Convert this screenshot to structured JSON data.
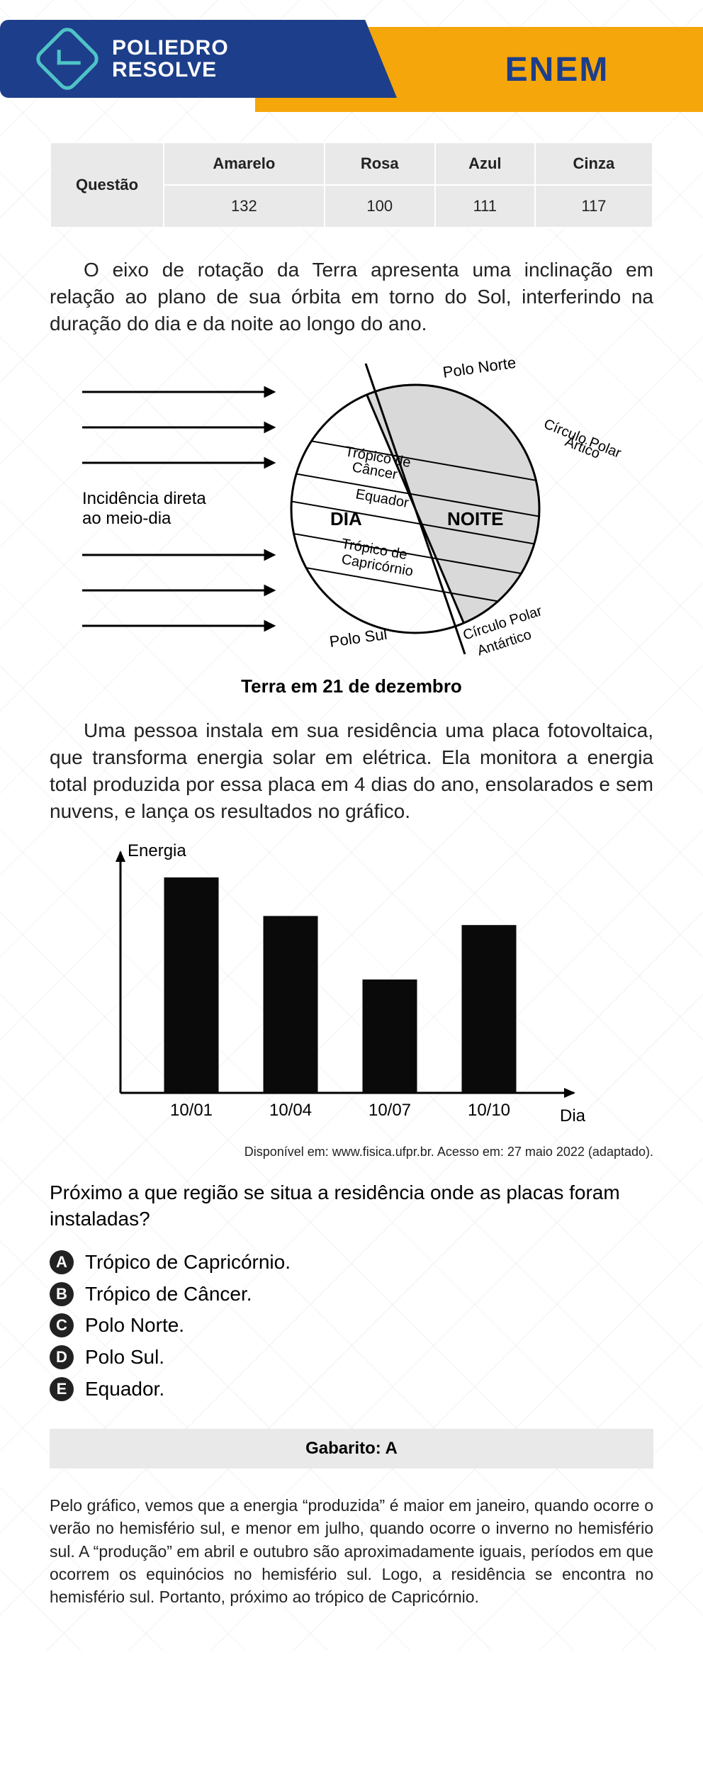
{
  "header": {
    "logo_line1": "POLIEDRO",
    "logo_line2": "RESOLVE",
    "exam": "ENEM"
  },
  "question_table": {
    "row_label": "Questão",
    "columns": [
      "Amarelo",
      "Rosa",
      "Azul",
      "Cinza"
    ],
    "values": [
      "132",
      "100",
      "111",
      "117"
    ],
    "header_bg": "#e9e9e9",
    "text_color": "#222222"
  },
  "intro_para": "O eixo de rotação da Terra apresenta uma inclinação em relação ao plano de sua órbita em torno do Sol, interferindo na duração do dia e da noite ao longo do ano.",
  "earth_diagram": {
    "caption": "Terra em 21 de dezembro",
    "labels": {
      "incidence": "Incidência direta\nao meio-dia",
      "polo_norte": "Polo Norte",
      "circulo_artico": "Círculo Polar Ártico",
      "tropico_cancer": "Trópico de Câncer",
      "equador": "Equador",
      "dia": "DIA",
      "noite": "NOITE",
      "tropico_capricornio": "Trópico de Capricórnio",
      "polo_sul": "Polo Sul",
      "circulo_antartico": "Círculo Polar Antártico"
    },
    "day_fill": "#ffffff",
    "night_fill": "#d9d9d9",
    "stroke": "#000000"
  },
  "second_para": "Uma pessoa instala em sua residência uma placa fotovoltaica, que transforma energia solar em elétrica. Ela monitora a energia total produzida por essa placa em 4 dias do ano, ensolarados e sem nuvens, e lança os resultados no gráfico.",
  "energy_chart": {
    "type": "bar",
    "y_label": "Energia",
    "x_label": "Dia",
    "categories": [
      "10/01",
      "10/04",
      "10/07",
      "10/10"
    ],
    "values": [
      95,
      78,
      50,
      74
    ],
    "ylim": [
      0,
      100
    ],
    "bar_color": "#0a0a0a",
    "axis_color": "#000000",
    "bar_width": 0.55,
    "label_fontsize": 24,
    "background_color": "#ffffff",
    "axis_width": 3
  },
  "source_text": "Disponível em: www.fisica.ufpr.br. Acesso em: 27 maio 2022 (adaptado).",
  "question_text": "Próximo a que região se situa a residência onde as placas foram instaladas?",
  "options": [
    {
      "letter": "A",
      "text": "Trópico de Capricórnio."
    },
    {
      "letter": "B",
      "text": "Trópico de Câncer."
    },
    {
      "letter": "C",
      "text": "Polo Norte."
    },
    {
      "letter": "D",
      "text": "Polo Sul."
    },
    {
      "letter": "E",
      "text": "Equador."
    }
  ],
  "gabarito": "Gabarito: A",
  "explanation": "Pelo gráfico, vemos que a energia “produzida” é maior em janeiro, quando ocorre o verão no hemisfério sul, e menor em julho, quando ocorre o inverno no hemisfério sul. A “produção” em abril e outubro são aproximadamente iguais, períodos em que ocorrem os equinócios no hemisfério sul. Logo, a residência se encontra no hemisfério sul. Portanto, próximo ao trópico de Capricórnio."
}
